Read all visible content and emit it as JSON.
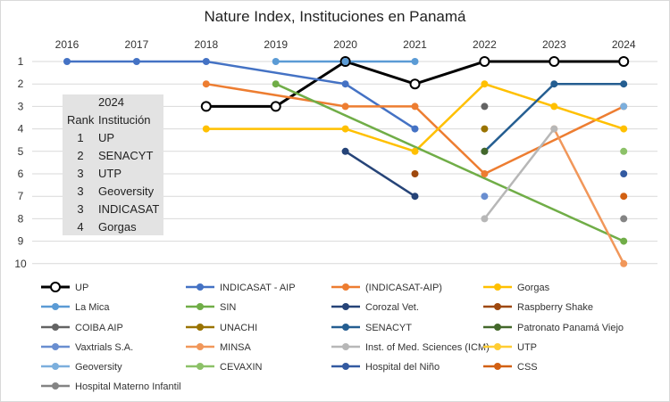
{
  "chart_data": {
    "type": "line",
    "title": "Nature Index, Instituciones en Panamá",
    "x": [
      2016,
      2017,
      2018,
      2019,
      2020,
      2021,
      2022,
      2023,
      2024
    ],
    "y_axis": {
      "ticks": [
        1,
        2,
        3,
        4,
        5,
        6,
        7,
        8,
        9,
        10
      ],
      "reversed": true,
      "range": [
        1,
        10
      ]
    },
    "grid": "horizontal",
    "legend_position": "bottom",
    "series": [
      {
        "name": "UP",
        "color": "#000000",
        "hollow": true,
        "values": [
          null,
          null,
          3,
          3,
          1,
          2,
          1,
          1,
          1
        ]
      },
      {
        "name": "INDICASAT - AIP",
        "color": "#4472C4",
        "values": [
          1,
          1,
          1,
          null,
          2,
          4,
          null,
          null,
          null
        ]
      },
      {
        "name": "(INDICASAT-AIP)",
        "color": "#ED7D31",
        "values": [
          null,
          null,
          2,
          null,
          3,
          3,
          6,
          null,
          3
        ]
      },
      {
        "name": "Gorgas",
        "color": "#FFC000",
        "values": [
          null,
          null,
          4,
          null,
          4,
          5,
          2,
          3,
          4
        ]
      },
      {
        "name": "La Mica",
        "color": "#5B9BD5",
        "values": [
          null,
          null,
          null,
          1,
          1,
          1,
          null,
          null,
          null
        ]
      },
      {
        "name": "SIN",
        "color": "#70AD47",
        "values": [
          null,
          null,
          null,
          2,
          null,
          null,
          null,
          null,
          9
        ]
      },
      {
        "name": "Corozal Vet.",
        "color": "#264478",
        "values": [
          null,
          null,
          null,
          null,
          5,
          7,
          null,
          null,
          null
        ]
      },
      {
        "name": "Raspberry Shake",
        "color": "#9E480E",
        "values": [
          null,
          null,
          null,
          null,
          null,
          6,
          null,
          null,
          null
        ]
      },
      {
        "name": "COIBA AIP",
        "color": "#636363",
        "values": [
          null,
          null,
          null,
          null,
          null,
          null,
          3,
          null,
          null
        ]
      },
      {
        "name": "UNACHI",
        "color": "#997300",
        "values": [
          null,
          null,
          null,
          null,
          null,
          null,
          4,
          null,
          null
        ]
      },
      {
        "name": "SENACYT",
        "color": "#255E91",
        "values": [
          null,
          null,
          null,
          null,
          null,
          null,
          5,
          2,
          2
        ]
      },
      {
        "name": "Patronato Panamá Viejo",
        "color": "#43682B",
        "values": [
          null,
          null,
          null,
          null,
          null,
          null,
          5,
          null,
          null
        ]
      },
      {
        "name": "Vaxtrials S.A.",
        "color": "#698ED0",
        "values": [
          null,
          null,
          null,
          null,
          null,
          null,
          7,
          null,
          null
        ]
      },
      {
        "name": "MINSA",
        "color": "#F1975A",
        "values": [
          null,
          null,
          null,
          null,
          null,
          null,
          null,
          4,
          10
        ]
      },
      {
        "name": "Inst. of Med. Sciences (ICM)",
        "color": "#B7B7B7",
        "values": [
          null,
          null,
          null,
          null,
          null,
          null,
          8,
          4,
          null
        ]
      },
      {
        "name": "UTP",
        "color": "#FFCD33",
        "values": [
          null,
          null,
          null,
          null,
          null,
          null,
          null,
          null,
          null
        ]
      },
      {
        "name": "Geoversity",
        "color": "#7CAFDD",
        "values": [
          null,
          null,
          null,
          null,
          null,
          null,
          null,
          null,
          3
        ]
      },
      {
        "name": "CEVAXIN",
        "color": "#8CC168",
        "values": [
          null,
          null,
          null,
          null,
          null,
          null,
          null,
          null,
          5
        ]
      },
      {
        "name": "Hospital del Niño",
        "color": "#335AA1",
        "values": [
          null,
          null,
          null,
          null,
          null,
          null,
          null,
          null,
          6
        ]
      },
      {
        "name": "CSS",
        "color": "#D26012",
        "values": [
          null,
          null,
          null,
          null,
          null,
          null,
          null,
          null,
          7
        ]
      },
      {
        "name": "Hospital Materno Infantil",
        "color": "#848484",
        "values": [
          null,
          null,
          null,
          null,
          null,
          null,
          null,
          null,
          8
        ]
      }
    ]
  },
  "ranking_box": {
    "year": "2024",
    "col_rank": "Rank",
    "col_inst": "Institución",
    "rows": [
      {
        "rank": "1",
        "name": "UP"
      },
      {
        "rank": "2",
        "name": "SENACYT"
      },
      {
        "rank": "3",
        "name": "UTP"
      },
      {
        "rank": "3",
        "name": "Geoversity"
      },
      {
        "rank": "3",
        "name": "INDICASAT"
      },
      {
        "rank": "4",
        "name": "Gorgas"
      }
    ]
  }
}
